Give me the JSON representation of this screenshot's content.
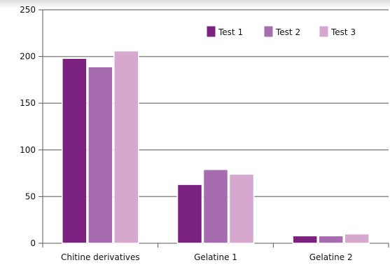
{
  "chart_data": {
    "type": "bar",
    "categories": [
      "Chitine derivatives",
      "Gelatine 1",
      "Gelatine 2"
    ],
    "series": [
      {
        "name": "Test 1",
        "values": [
          198,
          63,
          8
        ]
      },
      {
        "name": "Test 2",
        "values": [
          189,
          79,
          8
        ]
      },
      {
        "name": "Test 3",
        "values": [
          206,
          74,
          10
        ]
      }
    ],
    "colors": [
      "#7b2180",
      "#a76bb0",
      "#d6a8cf"
    ],
    "ylim": [
      0,
      250
    ],
    "yticks": [
      0,
      50,
      100,
      150,
      200,
      250
    ],
    "grid": true,
    "legend": "top-right"
  }
}
